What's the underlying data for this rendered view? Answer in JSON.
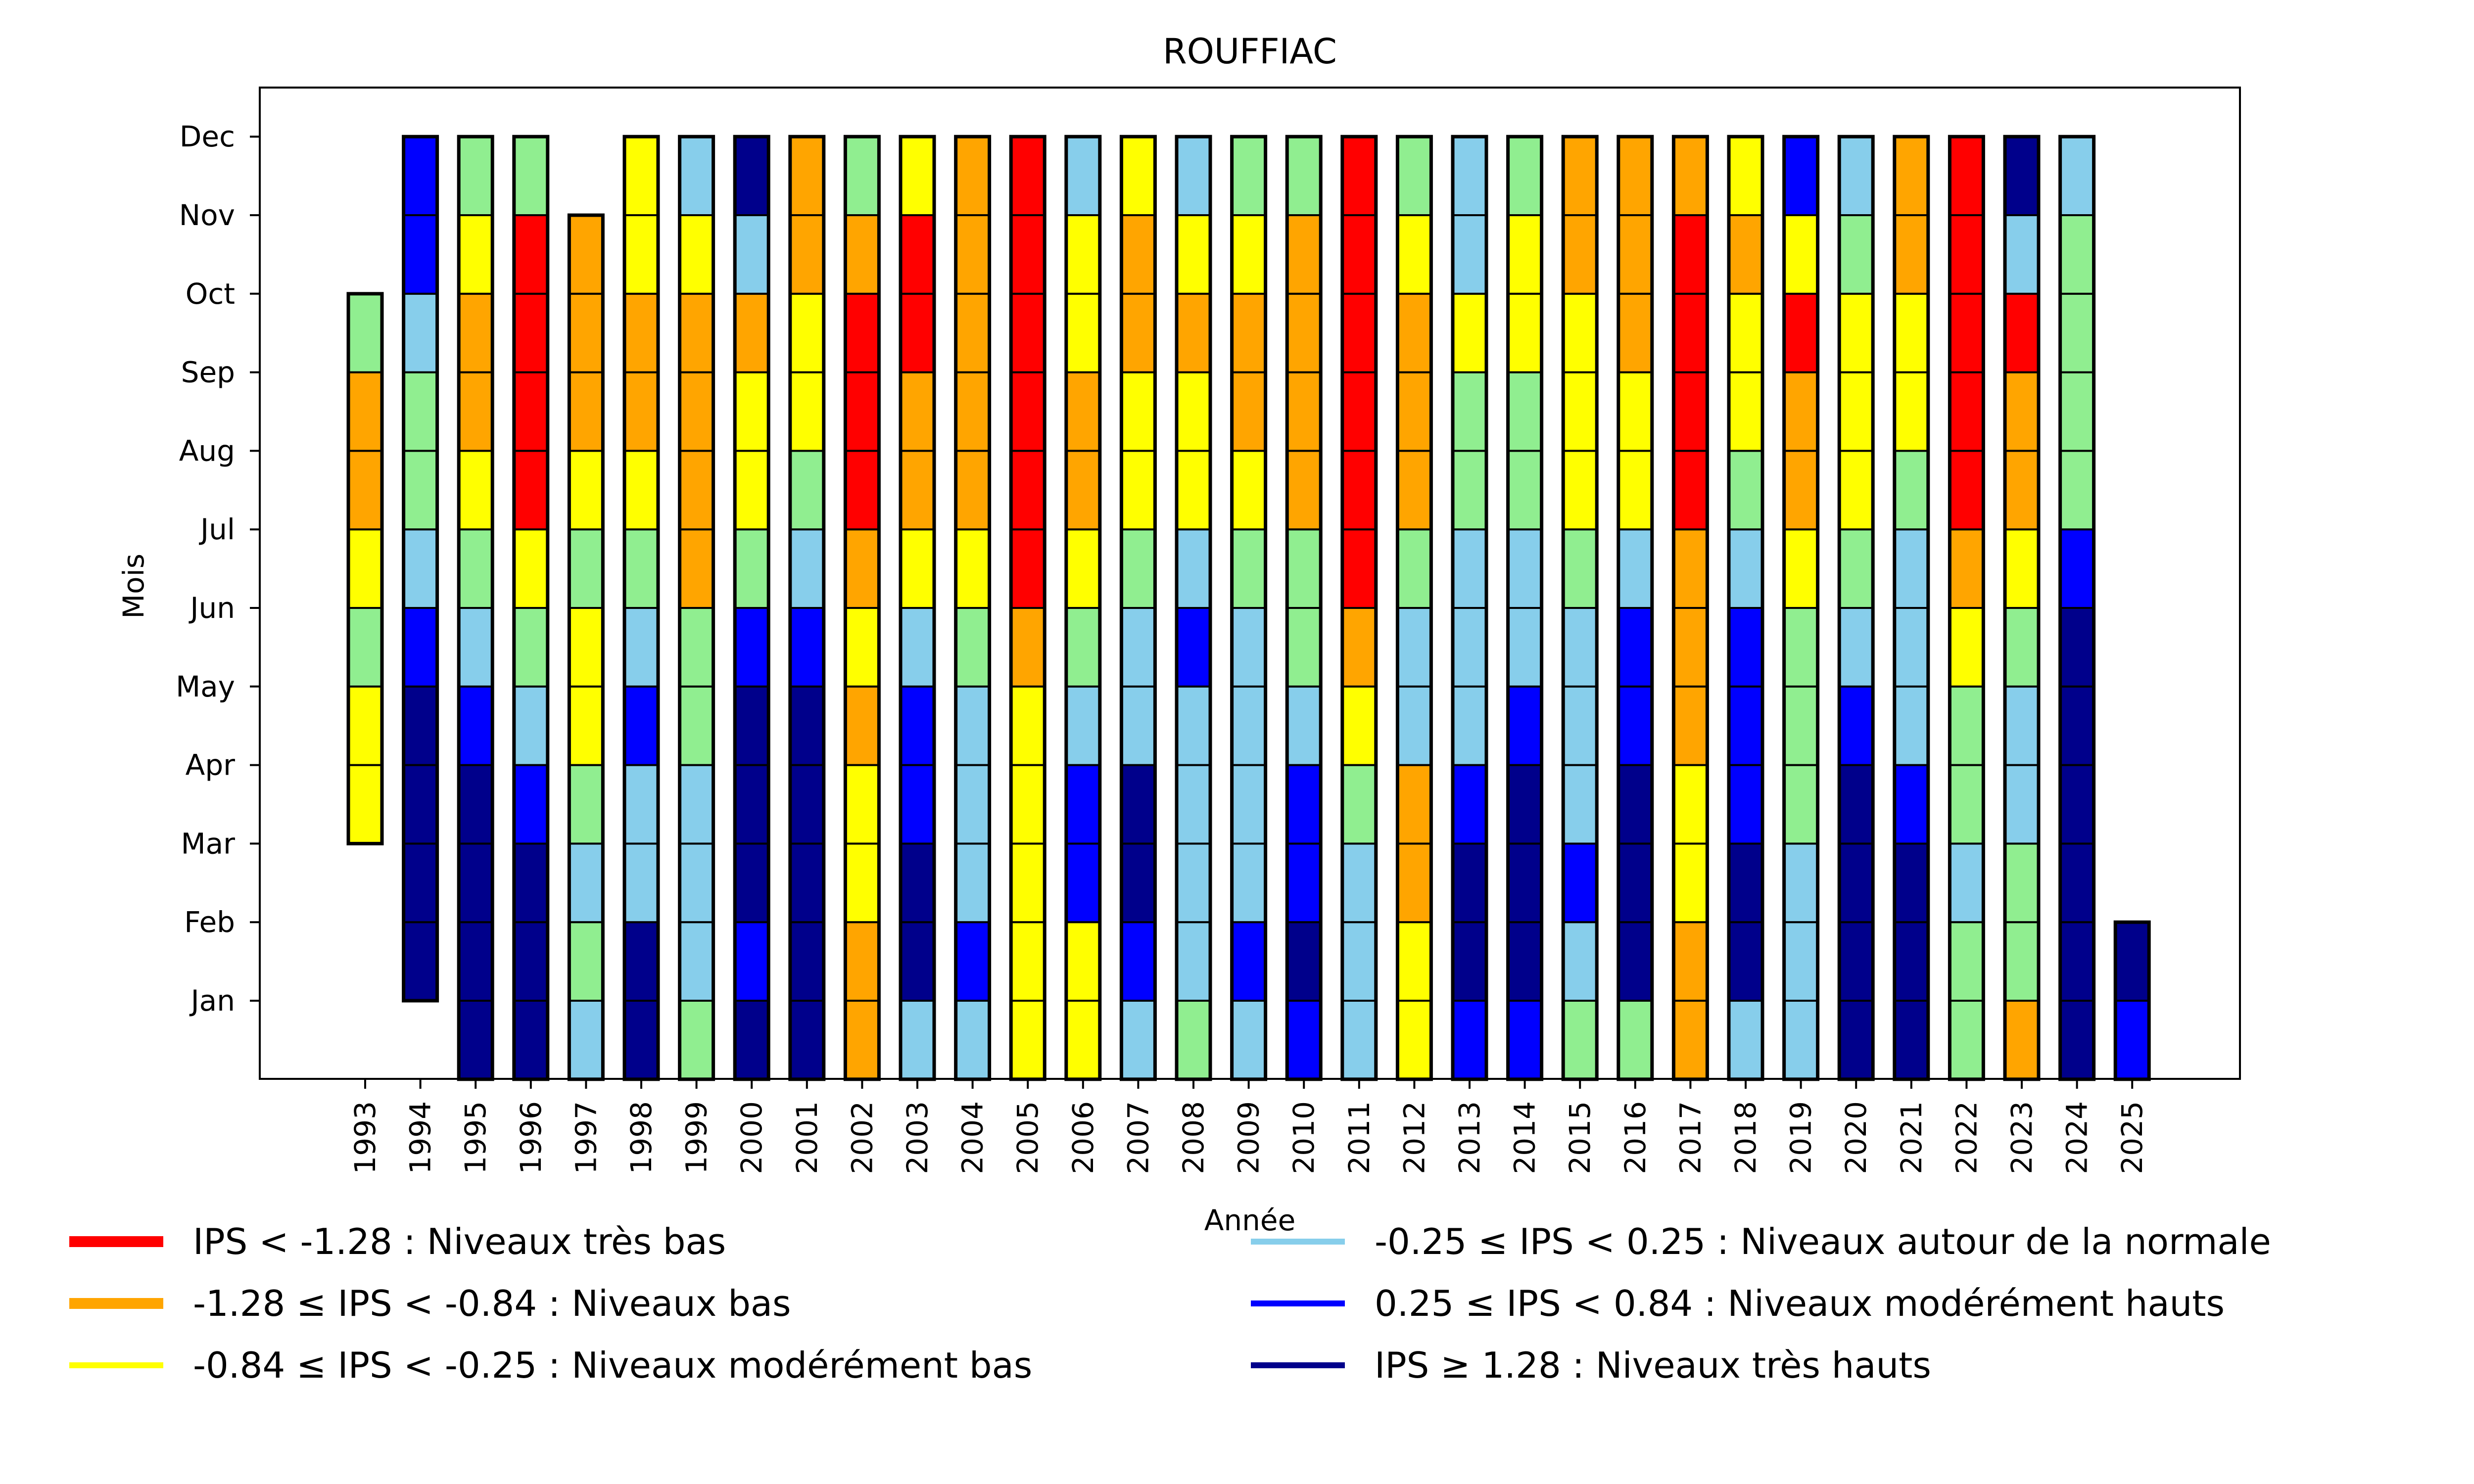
{
  "chart_data": {
    "type": "heatmap",
    "title": "ROUFFIAC",
    "xlabel": "Année",
    "ylabel": "Mois",
    "x": [
      1993,
      1994,
      1995,
      1996,
      1997,
      1998,
      1999,
      2000,
      2001,
      2002,
      2003,
      2004,
      2005,
      2006,
      2007,
      2008,
      2009,
      2010,
      2011,
      2012,
      2013,
      2014,
      2015,
      2016,
      2017,
      2018,
      2019,
      2020,
      2021,
      2022,
      2023,
      2024,
      2025
    ],
    "xlim": [
      1992,
      2027
    ],
    "month_labels": [
      "Jan",
      "Feb",
      "Mar",
      "Apr",
      "May",
      "Jun",
      "Jul",
      "Aug",
      "Sep",
      "Oct",
      "Nov",
      "Dec"
    ],
    "categories": {
      "R": {
        "color": "#ff0000",
        "label": "IPS < -1.28 : Niveaux très bas"
      },
      "O": {
        "color": "#ffa500",
        "label": "-1.28 ≤ IPS < -0.84 : Niveaux bas"
      },
      "Y": {
        "color": "#ffff00",
        "label": "-0.84 ≤ IPS < -0.25 : Niveaux modérément bas"
      },
      "G": {
        "color": "#90ee90",
        "label": ""
      },
      "S": {
        "color": "#87ceeb",
        "label": "-0.25 ≤ IPS < 0.25 : Niveaux autour de la normale"
      },
      "B": {
        "color": "#0000ff",
        "label": "0.25 ≤ IPS < 0.84 : Niveaux modérément hauts"
      },
      "N": {
        "color": "#00008b",
        "label": "IPS ≥ 1.28 : Niveaux très hauts"
      }
    },
    "note": "values per year are month codes Jan..Dec; null = no data",
    "values": {
      "1993": [
        null,
        null,
        null,
        "Y",
        "Y",
        "G",
        "Y",
        "O",
        "O",
        "G",
        null,
        null
      ],
      "1994": [
        null,
        "N",
        "N",
        "N",
        "N",
        "B",
        "S",
        "G",
        "G",
        "S",
        "B",
        "B"
      ],
      "1995": [
        "N",
        "N",
        "N",
        "N",
        "B",
        "S",
        "G",
        "Y",
        "O",
        "O",
        "Y",
        "G"
      ],
      "1996": [
        "N",
        "N",
        "N",
        "B",
        "S",
        "G",
        "Y",
        "R",
        "R",
        "R",
        "R",
        "G"
      ],
      "1997": [
        "S",
        "G",
        "S",
        "G",
        "Y",
        "Y",
        "G",
        "Y",
        "O",
        "O",
        "O",
        null
      ],
      "1998": [
        "N",
        "N",
        "S",
        "S",
        "B",
        "S",
        "G",
        "Y",
        "O",
        "O",
        "Y",
        "Y"
      ],
      "1999": [
        "G",
        "S",
        "S",
        "S",
        "G",
        "G",
        "O",
        "O",
        "O",
        "O",
        "Y",
        "S"
      ],
      "2000": [
        "N",
        "B",
        "N",
        "N",
        "N",
        "B",
        "G",
        "Y",
        "Y",
        "O",
        "S",
        "N"
      ],
      "2001": [
        "N",
        "N",
        "N",
        "N",
        "N",
        "B",
        "S",
        "G",
        "Y",
        "Y",
        "O",
        "O"
      ],
      "2002": [
        "O",
        "O",
        "Y",
        "Y",
        "O",
        "Y",
        "O",
        "R",
        "R",
        "R",
        "O",
        "G"
      ],
      "2003": [
        "S",
        "N",
        "N",
        "B",
        "B",
        "S",
        "Y",
        "O",
        "O",
        "R",
        "R",
        "Y"
      ],
      "2004": [
        "S",
        "B",
        "S",
        "S",
        "S",
        "G",
        "Y",
        "O",
        "O",
        "O",
        "O",
        "O"
      ],
      "2005": [
        "Y",
        "Y",
        "Y",
        "Y",
        "Y",
        "O",
        "R",
        "R",
        "R",
        "R",
        "R",
        "R"
      ],
      "2006": [
        "Y",
        "Y",
        "B",
        "B",
        "S",
        "G",
        "Y",
        "O",
        "O",
        "Y",
        "Y",
        "S"
      ],
      "2007": [
        "S",
        "B",
        "N",
        "N",
        "S",
        "S",
        "G",
        "Y",
        "Y",
        "O",
        "O",
        "Y"
      ],
      "2008": [
        "G",
        "S",
        "S",
        "S",
        "S",
        "B",
        "S",
        "Y",
        "Y",
        "O",
        "Y",
        "S"
      ],
      "2009": [
        "S",
        "B",
        "S",
        "S",
        "S",
        "S",
        "G",
        "Y",
        "O",
        "O",
        "Y",
        "G"
      ],
      "2010": [
        "B",
        "N",
        "B",
        "B",
        "S",
        "G",
        "G",
        "O",
        "O",
        "O",
        "O",
        "G"
      ],
      "2011": [
        "S",
        "S",
        "S",
        "G",
        "Y",
        "O",
        "R",
        "R",
        "R",
        "R",
        "R",
        "R"
      ],
      "2012": [
        "Y",
        "Y",
        "O",
        "O",
        "S",
        "S",
        "G",
        "O",
        "O",
        "O",
        "Y",
        "G"
      ],
      "2013": [
        "B",
        "N",
        "N",
        "B",
        "S",
        "S",
        "S",
        "G",
        "G",
        "Y",
        "S",
        "S"
      ],
      "2014": [
        "B",
        "N",
        "N",
        "N",
        "B",
        "S",
        "S",
        "G",
        "G",
        "Y",
        "Y",
        "G"
      ],
      "2015": [
        "G",
        "S",
        "B",
        "S",
        "S",
        "S",
        "G",
        "Y",
        "Y",
        "Y",
        "O",
        "O"
      ],
      "2016": [
        "G",
        "N",
        "N",
        "N",
        "B",
        "B",
        "S",
        "Y",
        "Y",
        "O",
        "O",
        "O"
      ],
      "2017": [
        "O",
        "O",
        "Y",
        "Y",
        "O",
        "O",
        "O",
        "R",
        "R",
        "R",
        "R",
        "O"
      ],
      "2018": [
        "S",
        "N",
        "N",
        "B",
        "B",
        "B",
        "S",
        "G",
        "Y",
        "Y",
        "O",
        "Y"
      ],
      "2019": [
        "S",
        "S",
        "S",
        "G",
        "G",
        "G",
        "Y",
        "O",
        "O",
        "R",
        "Y",
        "B"
      ],
      "2020": [
        "N",
        "N",
        "N",
        "N",
        "B",
        "S",
        "G",
        "Y",
        "Y",
        "Y",
        "G",
        "S"
      ],
      "2021": [
        "N",
        "N",
        "N",
        "B",
        "S",
        "S",
        "S",
        "G",
        "Y",
        "Y",
        "O",
        "O"
      ],
      "2022": [
        "G",
        "G",
        "S",
        "G",
        "G",
        "Y",
        "O",
        "R",
        "R",
        "R",
        "R",
        "R"
      ],
      "2023": [
        "O",
        "G",
        "G",
        "S",
        "S",
        "G",
        "Y",
        "O",
        "O",
        "R",
        "S",
        "N"
      ],
      "2024": [
        "N",
        "N",
        "N",
        "N",
        "N",
        "N",
        "B",
        "G",
        "G",
        "G",
        "G",
        "S"
      ],
      "2025": [
        "B",
        "N",
        null,
        null,
        null,
        null,
        null,
        null,
        null,
        null,
        null,
        null
      ]
    },
    "legend": {
      "placement": "below-plot, two columns",
      "entries": [
        {
          "code": "R",
          "label": "IPS < -1.28 : Niveaux très bas",
          "color": "#ff0000"
        },
        {
          "code": "O",
          "label": "-1.28 ≤ IPS < -0.84 : Niveaux bas",
          "color": "#ffa500"
        },
        {
          "code": "Y",
          "label": "-0.84 ≤ IPS < -0.25 : Niveaux modérément bas",
          "color": "#ffff00"
        },
        {
          "code": "S",
          "label": "-0.25 ≤ IPS < 0.25 : Niveaux autour de la normale",
          "color": "#87ceeb"
        },
        {
          "code": "B",
          "label": "0.25 ≤ IPS < 0.84 : Niveaux modérément hauts",
          "color": "#0000ff"
        },
        {
          "code": "N",
          "label": "IPS ≥ 1.28 : Niveaux très hauts",
          "color": "#00008b"
        }
      ]
    },
    "grid": false
  }
}
